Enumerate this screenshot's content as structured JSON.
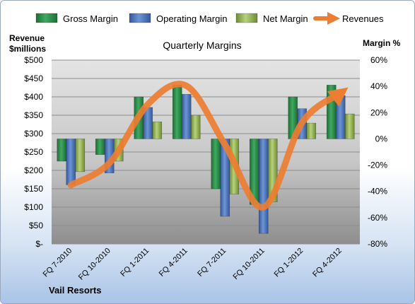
{
  "chart_data": {
    "type": "bar",
    "title": "Quarterly Margins",
    "categories": [
      "FQ 7-2010",
      "FQ 10-2010",
      "FQ 1-2011",
      "FQ 4-2011",
      "FQ 7-2011",
      "FQ 10-2011",
      "FQ 1-2012",
      "FQ 4-2012"
    ],
    "series": [
      {
        "name": "Gross Margin",
        "axis": "right",
        "type": "bar",
        "color": "#2e8b4a",
        "values": [
          -17,
          -12,
          32,
          41,
          -38,
          -50,
          32,
          41
        ]
      },
      {
        "name": "Operating Margin",
        "axis": "right",
        "type": "bar",
        "color": "#4f79bd",
        "values": [
          -35,
          -26,
          24,
          34,
          -59,
          -72,
          23,
          33
        ]
      },
      {
        "name": "Net Margin",
        "axis": "right",
        "type": "bar",
        "color": "#9bbb59",
        "values": [
          -25,
          -17,
          13,
          18,
          -42,
          -48,
          12,
          19
        ]
      },
      {
        "name": "Revenues",
        "axis": "left",
        "type": "line",
        "color": "#ed7d31",
        "values": [
          160,
          220,
          380,
          430,
          270,
          100,
          330,
          410
        ]
      }
    ],
    "left_axis": {
      "label_line1": "Revenue",
      "label_line2": "$millions",
      "min": 0,
      "max": 500,
      "step": 50,
      "ticks": [
        "$-",
        "$50",
        "$100",
        "$150",
        "$200",
        "$250",
        "$300",
        "$350",
        "$400",
        "$450",
        "$500"
      ]
    },
    "right_axis": {
      "label": "Margin %",
      "min": -80,
      "max": 60,
      "step": 20,
      "ticks": [
        "-80%",
        "-60%",
        "-40%",
        "-20%",
        "0%",
        "20%",
        "40%",
        "60%"
      ]
    },
    "legend": {
      "position": "top"
    },
    "grid": true
  },
  "footer_text": "Vail Resorts"
}
